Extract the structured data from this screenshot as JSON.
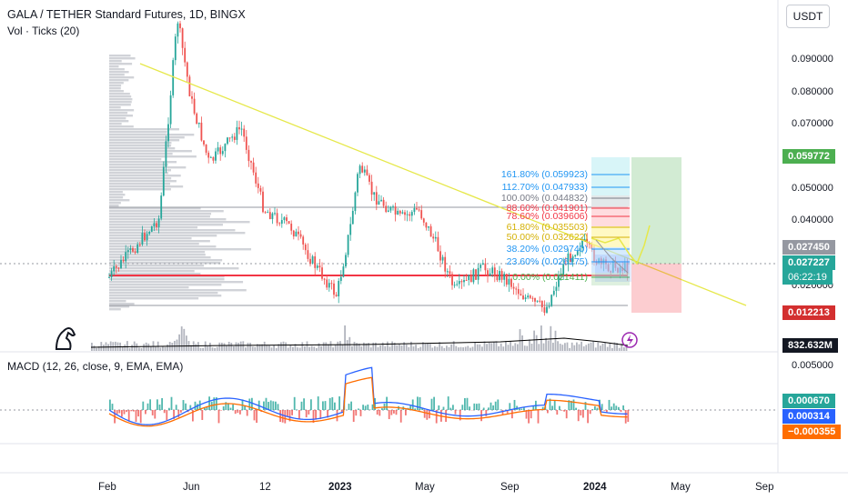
{
  "header": {
    "title": "GALA / TETHER Standard Futures, 1D, BINGX",
    "indicator": "Vol · Ticks (20)",
    "macd": "MACD (12, 26, close, 9, EMA, EMA)",
    "currency": "USDT"
  },
  "price_axis": [
    "0.090000",
    "0.080000",
    "0.070000",
    "0.050000",
    "0.040000",
    "0.020000"
  ],
  "macd_axis": [
    "0.005000"
  ],
  "time_axis": [
    "Feb",
    "Jun",
    "12",
    "2023",
    "May",
    "Sep",
    "2024",
    "May",
    "Sep"
  ],
  "badges": {
    "target": "0.059772",
    "last": "0.027450",
    "current": "0.027227",
    "countdown": "06:22:19",
    "stop": "0.012213",
    "volume": "832.632M",
    "macd_a": "0.000670",
    "macd_b": "0.000314",
    "macd_c": "−0.000355"
  },
  "fib_levels": [
    {
      "label": "161.80% (0.059923)",
      "color": "#2196f3"
    },
    {
      "label": "112.70% (0.047933)",
      "color": "#2196f3"
    },
    {
      "label": "100.00% (0.044832)",
      "color": "#787b86"
    },
    {
      "label": "88.60% (0.041901)",
      "color": "#f23645"
    },
    {
      "label": "78.60% (0.039606)",
      "color": "#f23645"
    },
    {
      "label": "61.80% (0.035503)",
      "color": "#d4b106"
    },
    {
      "label": "50.00% (0.032622)",
      "color": "#d4b106"
    },
    {
      "label": "38.20% (0.029740)",
      "color": "#2196f3"
    },
    {
      "label": "23.60% (0.026175)",
      "color": "#2196f3"
    },
    {
      "label": "0.00% (0.021411)",
      "color": "#4caf50"
    }
  ],
  "colors": {
    "up": "#26a69a",
    "down": "#ef5350",
    "trend": "#e6e84a",
    "target": "#4caf50",
    "stop": "#d32f2f",
    "macd": "#2962ff",
    "signal": "#ff6d00"
  },
  "chart_data": {
    "type": "line",
    "title": "GALA / TETHER Standard Futures, 1D, BINGX",
    "x": [
      "Feb",
      "Jun",
      "12",
      "2023",
      "May",
      "Sep",
      "2024"
    ],
    "series": [
      {
        "name": "GALA / TETHER",
        "values": [
          0.022,
          0.075,
          0.045,
          0.038,
          0.038,
          0.016,
          0.027227
        ]
      }
    ],
    "ylim": [
      0.012,
      0.095
    ]
  }
}
